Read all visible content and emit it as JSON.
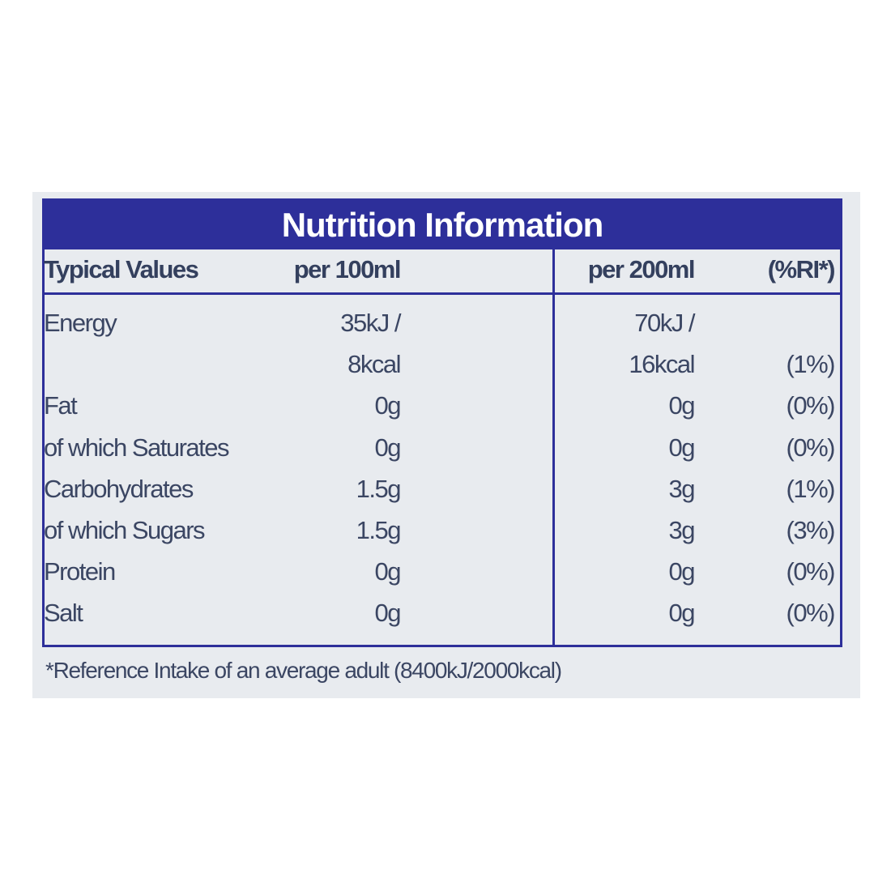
{
  "title": "Nutrition Information",
  "header": {
    "label": "Typical Values",
    "per100": "per 100ml",
    "per200": "per 200ml",
    "ri": "(%RI*)"
  },
  "rows": [
    {
      "label": "Energy",
      "per100": "35kJ /",
      "per200": "70kJ /"
    },
    {
      "per100": "8kcal",
      "per200": "16kcal",
      "ri": "(1%)"
    },
    {
      "label": "Fat",
      "per100": "0g",
      "per200": "0g",
      "ri": "(0%)"
    },
    {
      "label": "of which Saturates",
      "per100": "0g",
      "per200": "0g",
      "ri": "(0%)"
    },
    {
      "label": "Carbohydrates",
      "per100": "1.5g",
      "per200": "3g",
      "ri": "(1%)"
    },
    {
      "label": "of which Sugars",
      "per100": "1.5g",
      "per200": "3g",
      "ri": "(3%)"
    },
    {
      "label": "Protein",
      "per100": "0g",
      "per200": "0g",
      "ri": "(0%)"
    },
    {
      "label": "Salt",
      "per100": "0g",
      "per200": "0g",
      "ri": "(0%)"
    }
  ],
  "footnote": "*Reference Intake of an average adult (8400kJ/2000kcal)"
}
